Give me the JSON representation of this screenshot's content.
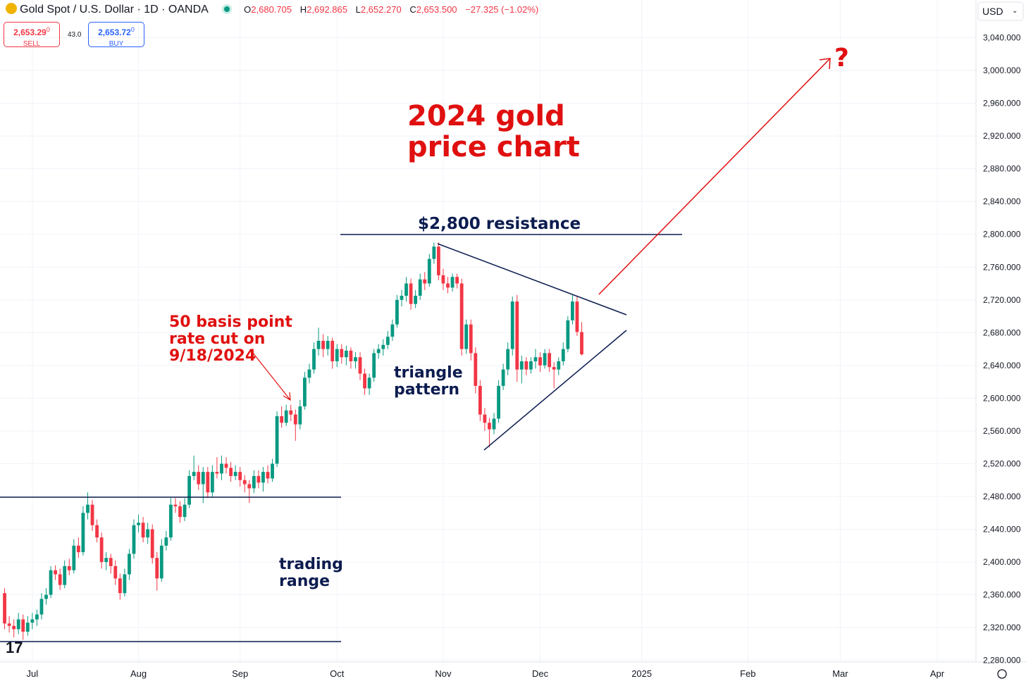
{
  "chart_data": {
    "type": "candlestick",
    "header": {
      "symbol": "Gold Spot / U.S. Dollar · 1D · OANDA",
      "o_label": "O",
      "o": "2,680.705",
      "h_label": "H",
      "h": "2,692.865",
      "l_label": "L",
      "l": "2,652.270",
      "c_label": "C",
      "c": "2,653.500",
      "change": "−27.325 (−1.02%)"
    },
    "trade": {
      "sell_price": "2,653.29",
      "sell_sup": "0",
      "sell": "SELL",
      "spread": "43.0",
      "buy_price": "2,653.72",
      "buy_sup": "0",
      "buy": "BUY"
    },
    "currency": "USD",
    "title": "2024 gold price chart",
    "annotations": {
      "resistance": "$2,800 resistance",
      "rate_cut": [
        "50 basis point",
        "rate cut on",
        "9/18/2024"
      ],
      "triangle": [
        "triangle",
        "pattern"
      ],
      "range": [
        "trading",
        "range"
      ],
      "question": "?"
    },
    "colors": {
      "up": "#089981",
      "down": "#f23645"
    },
    "grid": true,
    "xlim": [
      -7,
      204.4
    ],
    "xticks": [
      {
        "value": 0,
        "label": "Jul"
      },
      {
        "value": 23,
        "label": "Aug"
      },
      {
        "value": 45,
        "label": "Sep"
      },
      {
        "value": 66,
        "label": "Oct"
      },
      {
        "value": 89,
        "label": "Nov"
      },
      {
        "value": 110,
        "label": "Dec"
      },
      {
        "value": 132,
        "label": "2025"
      },
      {
        "value": 155,
        "label": "Feb"
      },
      {
        "value": 175,
        "label": "Mar"
      },
      {
        "value": 196,
        "label": "Apr"
      }
    ],
    "ylim": [
      2278,
      3086
    ],
    "yticks": [
      {
        "value": 2280,
        "label": "2,280.000"
      },
      {
        "value": 2320,
        "label": "2,320.000"
      },
      {
        "value": 2360,
        "label": "2,360.000"
      },
      {
        "value": 2400,
        "label": "2,400.000"
      },
      {
        "value": 2440,
        "label": "2,440.000"
      },
      {
        "value": 2480,
        "label": "2,480.000"
      },
      {
        "value": 2520,
        "label": "2,520.000"
      },
      {
        "value": 2560,
        "label": "2,560.000"
      },
      {
        "value": 2600,
        "label": "2,600.000"
      },
      {
        "value": 2640,
        "label": "2,640.000"
      },
      {
        "value": 2680,
        "label": "2,680.000"
      },
      {
        "value": 2720,
        "label": "2,720.000"
      },
      {
        "value": 2760,
        "label": "2,760.000"
      },
      {
        "value": 2800,
        "label": "2,800.000"
      },
      {
        "value": 2840,
        "label": "2,840.000"
      },
      {
        "value": 2880,
        "label": "2,880.000"
      },
      {
        "value": 2920,
        "label": "2,920.000"
      },
      {
        "value": 2960,
        "label": "2,960.000"
      },
      {
        "value": 3000,
        "label": "3,000.000"
      },
      {
        "value": 3040,
        "label": "3,040.000"
      }
    ],
    "x": [
      -6,
      -5,
      -4,
      -3,
      -2,
      -1,
      0,
      1,
      2,
      3,
      4,
      5,
      6,
      7,
      8,
      9,
      10,
      11,
      12,
      13,
      14,
      15,
      16,
      17,
      18,
      19,
      20,
      21,
      22,
      23,
      24,
      25,
      26,
      27,
      28,
      29,
      30,
      31,
      32,
      33,
      34,
      35,
      36,
      37,
      38,
      39,
      40,
      41,
      42,
      43,
      44,
      45,
      46,
      47,
      48,
      49,
      50,
      51,
      52,
      53,
      54,
      55,
      56,
      57,
      58,
      59,
      60,
      61,
      62,
      63,
      64,
      65,
      66,
      67,
      68,
      69,
      70,
      71,
      72,
      73,
      74,
      75,
      76,
      77,
      78,
      79,
      80,
      81,
      82,
      83,
      84,
      85,
      86,
      87,
      88,
      89,
      90,
      91,
      92,
      93,
      94,
      95,
      96,
      97,
      98,
      99,
      100,
      101,
      102,
      103,
      104,
      105,
      106,
      107,
      108,
      109,
      110,
      111,
      112,
      113,
      114,
      115,
      116,
      117,
      118,
      119
    ],
    "ohlc": [
      [
        2362,
        2368,
        2318,
        2325
      ],
      [
        2325,
        2334,
        2314,
        2322
      ],
      [
        2322,
        2330,
        2308,
        2318
      ],
      [
        2318,
        2338,
        2312,
        2330
      ],
      [
        2330,
        2336,
        2305,
        2315
      ],
      [
        2315,
        2334,
        2310,
        2326
      ],
      [
        2326,
        2338,
        2318,
        2330
      ],
      [
        2330,
        2342,
        2322,
        2336
      ],
      [
        2336,
        2362,
        2330,
        2355
      ],
      [
        2355,
        2368,
        2348,
        2360
      ],
      [
        2360,
        2395,
        2356,
        2390
      ],
      [
        2390,
        2396,
        2378,
        2385
      ],
      [
        2385,
        2392,
        2366,
        2372
      ],
      [
        2372,
        2402,
        2368,
        2395
      ],
      [
        2395,
        2404,
        2384,
        2390
      ],
      [
        2390,
        2428,
        2386,
        2420
      ],
      [
        2420,
        2430,
        2405,
        2412
      ],
      [
        2412,
        2468,
        2408,
        2460
      ],
      [
        2460,
        2485,
        2452,
        2470
      ],
      [
        2470,
        2476,
        2438,
        2445
      ],
      [
        2445,
        2452,
        2424,
        2430
      ],
      [
        2430,
        2436,
        2392,
        2400
      ],
      [
        2400,
        2412,
        2390,
        2405
      ],
      [
        2405,
        2410,
        2386,
        2395
      ],
      [
        2395,
        2402,
        2372,
        2380
      ],
      [
        2380,
        2386,
        2354,
        2362
      ],
      [
        2362,
        2392,
        2358,
        2385
      ],
      [
        2385,
        2416,
        2378,
        2410
      ],
      [
        2410,
        2452,
        2404,
        2445
      ],
      [
        2445,
        2458,
        2436,
        2448
      ],
      [
        2448,
        2455,
        2424,
        2430
      ],
      [
        2430,
        2448,
        2422,
        2440
      ],
      [
        2440,
        2446,
        2398,
        2405
      ],
      [
        2405,
        2412,
        2365,
        2380
      ],
      [
        2380,
        2428,
        2376,
        2420
      ],
      [
        2420,
        2438,
        2414,
        2430
      ],
      [
        2430,
        2478,
        2426,
        2470
      ],
      [
        2470,
        2478,
        2460,
        2468
      ],
      [
        2468,
        2474,
        2448,
        2455
      ],
      [
        2455,
        2478,
        2450,
        2470
      ],
      [
        2470,
        2512,
        2466,
        2505
      ],
      [
        2505,
        2530,
        2500,
        2510
      ],
      [
        2510,
        2518,
        2488,
        2495
      ],
      [
        2495,
        2516,
        2472,
        2510
      ],
      [
        2510,
        2516,
        2478,
        2485
      ],
      [
        2485,
        2518,
        2480,
        2510
      ],
      [
        2510,
        2528,
        2502,
        2508
      ],
      [
        2508,
        2530,
        2500,
        2520
      ],
      [
        2520,
        2528,
        2508,
        2515
      ],
      [
        2515,
        2522,
        2498,
        2505
      ],
      [
        2505,
        2518,
        2500,
        2510
      ],
      [
        2510,
        2516,
        2492,
        2500
      ],
      [
        2500,
        2506,
        2485,
        2495
      ],
      [
        2495,
        2500,
        2472,
        2490
      ],
      [
        2490,
        2512,
        2484,
        2505
      ],
      [
        2505,
        2512,
        2490,
        2497
      ],
      [
        2497,
        2516,
        2486,
        2510
      ],
      [
        2510,
        2518,
        2496,
        2502
      ],
      [
        2502,
        2526,
        2498,
        2520
      ],
      [
        2520,
        2584,
        2516,
        2578
      ],
      [
        2578,
        2590,
        2564,
        2570
      ],
      [
        2570,
        2592,
        2566,
        2585
      ],
      [
        2585,
        2592,
        2572,
        2580
      ],
      [
        2580,
        2586,
        2548,
        2568
      ],
      [
        2568,
        2598,
        2562,
        2590
      ],
      [
        2590,
        2632,
        2586,
        2625
      ],
      [
        2625,
        2642,
        2618,
        2635
      ],
      [
        2635,
        2668,
        2630,
        2660
      ],
      [
        2660,
        2686,
        2652,
        2670
      ],
      [
        2670,
        2678,
        2650,
        2660
      ],
      [
        2660,
        2676,
        2652,
        2670
      ],
      [
        2670,
        2674,
        2636,
        2645
      ],
      [
        2645,
        2666,
        2638,
        2660
      ],
      [
        2660,
        2666,
        2642,
        2650
      ],
      [
        2650,
        2664,
        2640,
        2658
      ],
      [
        2658,
        2662,
        2636,
        2645
      ],
      [
        2645,
        2656,
        2636,
        2650
      ],
      [
        2650,
        2656,
        2622,
        2630
      ],
      [
        2630,
        2636,
        2604,
        2612
      ],
      [
        2612,
        2630,
        2604,
        2625
      ],
      [
        2625,
        2660,
        2620,
        2655
      ],
      [
        2655,
        2666,
        2648,
        2660
      ],
      [
        2660,
        2672,
        2652,
        2665
      ],
      [
        2665,
        2682,
        2660,
        2675
      ],
      [
        2675,
        2696,
        2670,
        2690
      ],
      [
        2690,
        2726,
        2686,
        2720
      ],
      [
        2720,
        2732,
        2712,
        2725
      ],
      [
        2725,
        2748,
        2718,
        2740
      ],
      [
        2740,
        2746,
        2708,
        2715
      ],
      [
        2715,
        2732,
        2710,
        2725
      ],
      [
        2725,
        2752,
        2720,
        2745
      ],
      [
        2745,
        2754,
        2732,
        2740
      ],
      [
        2740,
        2776,
        2736,
        2770
      ],
      [
        2770,
        2790,
        2764,
        2785
      ],
      [
        2785,
        2790,
        2744,
        2750
      ],
      [
        2750,
        2758,
        2732,
        2740
      ],
      [
        2740,
        2748,
        2728,
        2735
      ],
      [
        2735,
        2752,
        2730,
        2748
      ],
      [
        2748,
        2752,
        2734,
        2740
      ],
      [
        2740,
        2746,
        2652,
        2660
      ],
      [
        2660,
        2696,
        2654,
        2690
      ],
      [
        2690,
        2696,
        2646,
        2655
      ],
      [
        2655,
        2662,
        2606,
        2615
      ],
      [
        2615,
        2622,
        2572,
        2580
      ],
      [
        2580,
        2588,
        2560,
        2570
      ],
      [
        2570,
        2576,
        2540,
        2562
      ],
      [
        2562,
        2582,
        2556,
        2575
      ],
      [
        2575,
        2622,
        2570,
        2615
      ],
      [
        2615,
        2642,
        2610,
        2635
      ],
      [
        2635,
        2668,
        2628,
        2660
      ],
      [
        2660,
        2724,
        2652,
        2718
      ],
      [
        2718,
        2726,
        2620,
        2635
      ],
      [
        2635,
        2652,
        2618,
        2645
      ],
      [
        2645,
        2650,
        2628,
        2635
      ],
      [
        2635,
        2650,
        2630,
        2645
      ],
      [
        2645,
        2660,
        2636,
        2650
      ],
      [
        2650,
        2656,
        2632,
        2640
      ],
      [
        2640,
        2660,
        2636,
        2655
      ],
      [
        2655,
        2660,
        2632,
        2638
      ],
      [
        2638,
        2644,
        2612,
        2635
      ],
      [
        2635,
        2650,
        2628,
        2645
      ],
      [
        2645,
        2668,
        2640,
        2660
      ],
      [
        2660,
        2700,
        2656,
        2695
      ],
      [
        2695,
        2726,
        2690,
        2718
      ],
      [
        2718,
        2724,
        2676,
        2680.825
      ],
      [
        2680.705,
        2692.865,
        2652.27,
        2653.5
      ]
    ]
  }
}
